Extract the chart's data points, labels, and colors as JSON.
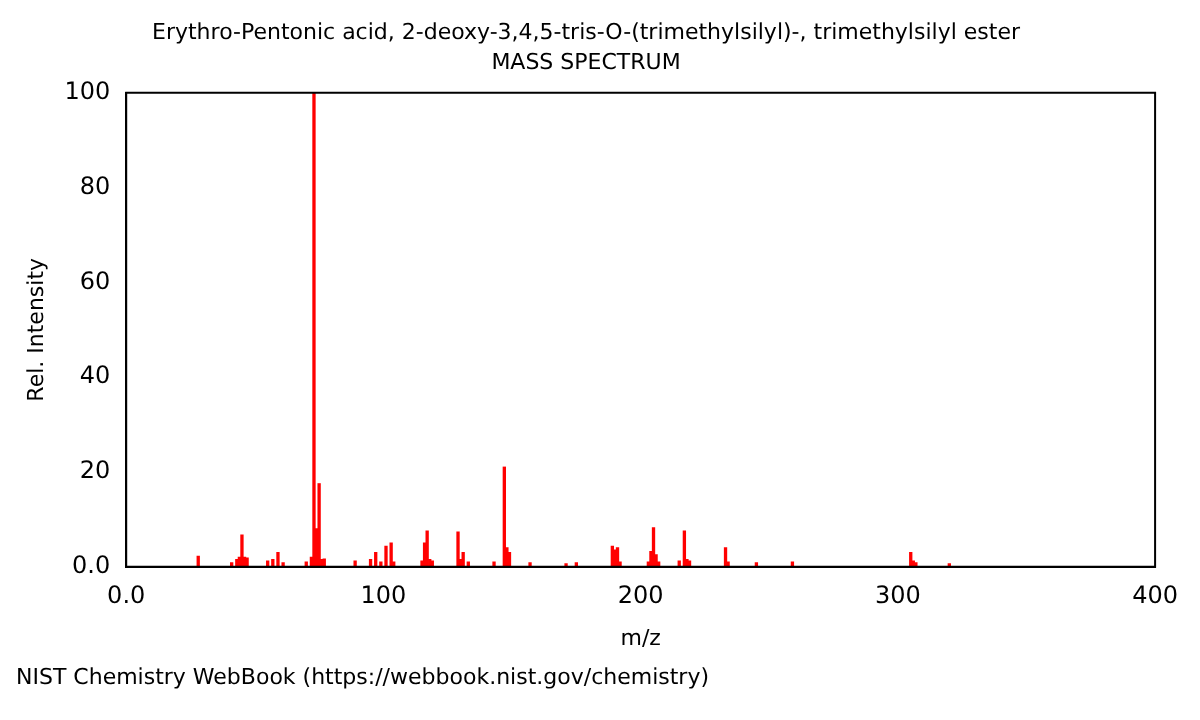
{
  "chart_data": {
    "type": "bar",
    "title": "Erythro-Pentonic acid, 2-deoxy-3,4,5-tris-O-(trimethylsilyl)-, trimethylsilyl ester",
    "subtitle": "MASS SPECTRUM",
    "xlabel": "m/z",
    "ylabel": "Rel. Intensity",
    "x": [
      28,
      41,
      43,
      44,
      45,
      46,
      47,
      55,
      57,
      59,
      61,
      70,
      72,
      73,
      74,
      75,
      76,
      77,
      89,
      95,
      97,
      99,
      101,
      103,
      104,
      115,
      116,
      117,
      118,
      119,
      129,
      130,
      131,
      133,
      143,
      147,
      148,
      149,
      157,
      171,
      175,
      189,
      190,
      191,
      192,
      203,
      204,
      205,
      206,
      207,
      215,
      217,
      218,
      219,
      233,
      234,
      245,
      259,
      305,
      306,
      307,
      320
    ],
    "values": [
      2.2,
      0.8,
      1.5,
      2,
      6.7,
      2,
      1.8,
      1.2,
      1.5,
      3,
      0.8,
      1,
      2,
      100,
      8,
      17.5,
      1.5,
      1.6,
      1.2,
      1.5,
      3,
      1,
      4.3,
      5,
      1,
      1.2,
      5,
      7.5,
      1.5,
      1.2,
      7.3,
      1.5,
      3,
      1,
      1,
      21,
      4,
      3,
      0.8,
      0.6,
      0.8,
      4.3,
      3.5,
      4,
      1,
      1,
      3.2,
      8.2,
      2.5,
      1,
      1.2,
      7.5,
      1.5,
      1.2,
      4,
      1,
      0.8,
      1,
      3,
      1.2,
      0.8,
      0.6
    ],
    "color": "#ff0000",
    "xlim": [
      0,
      400
    ],
    "xticks": [
      {
        "value": 0,
        "label": "0.0"
      },
      100,
      200,
      300,
      400
    ],
    "ylim": [
      0,
      100
    ],
    "yticks": [
      {
        "value": 0,
        "label": "0.0"
      },
      20,
      40,
      60,
      80,
      100
    ],
    "grid": false,
    "legend": false,
    "annotations": [
      "NIST Chemistry WebBook (https://webbook.nist.gov/chemistry)"
    ]
  }
}
